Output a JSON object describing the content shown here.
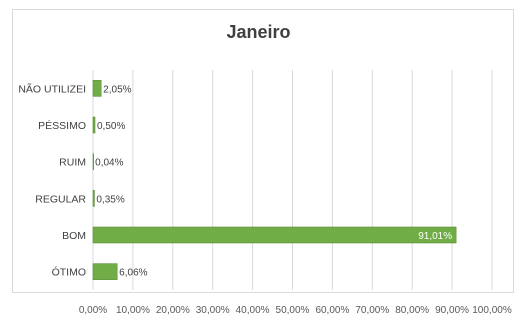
{
  "chart_data": {
    "type": "bar",
    "orientation": "horizontal",
    "title": "Janeiro",
    "xlabel": "",
    "ylabel": "",
    "categories": [
      "NÃO UTILIZEI",
      "PÉSSIMO",
      "RUIM",
      "REGULAR",
      "BOM",
      "ÓTIMO"
    ],
    "values": [
      2.05,
      0.5,
      0.04,
      0.35,
      91.01,
      6.06
    ],
    "value_labels": [
      "2,05%",
      "0,50%",
      "0,04%",
      "0,35%",
      "91,01%",
      "6,06%"
    ],
    "xlim": [
      0,
      100
    ],
    "x_ticks": [
      0,
      10,
      20,
      30,
      40,
      50,
      60,
      70,
      80,
      90,
      100
    ],
    "x_tick_labels": [
      "0,00%",
      "10,00%",
      "20,00%",
      "30,00%",
      "40,00%",
      "50,00%",
      "60,00%",
      "70,00%",
      "80,00%",
      "90,00%",
      "100,00%"
    ],
    "grid": true,
    "legend": "none",
    "bar_color": "#70ad47",
    "grid_color": "#d9d9d9"
  }
}
